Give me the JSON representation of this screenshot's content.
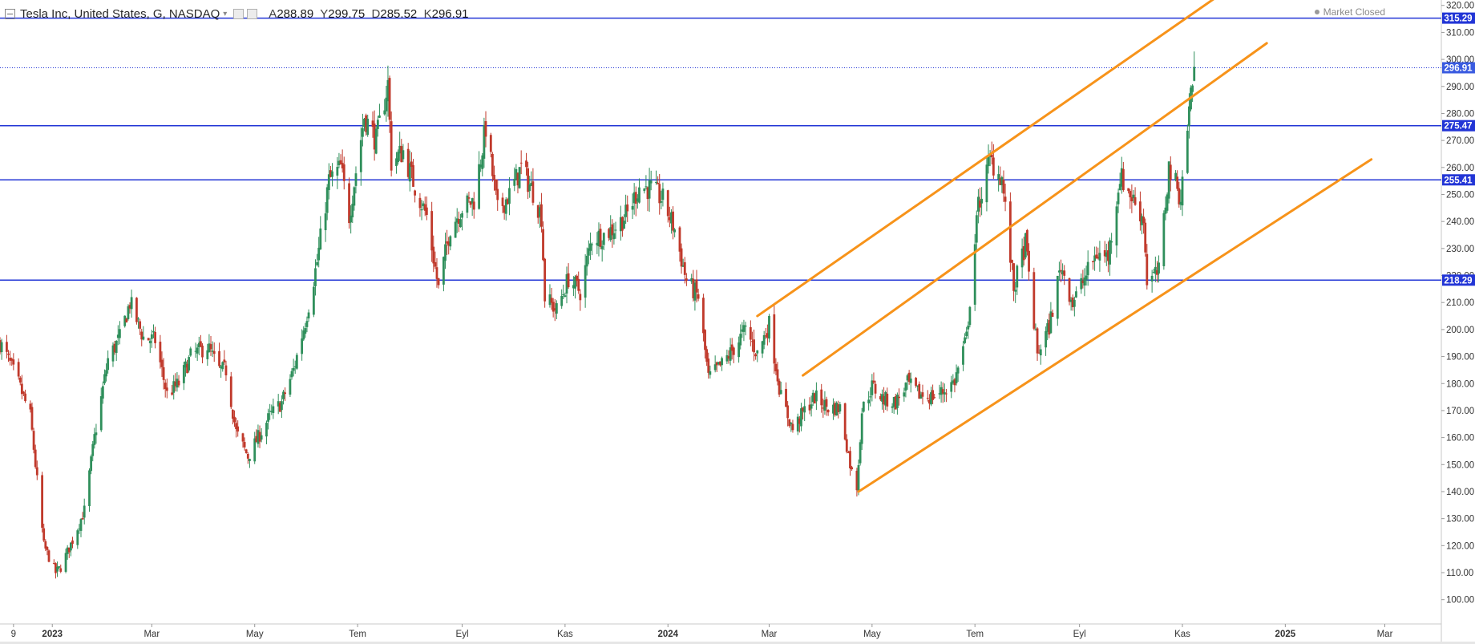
{
  "header": {
    "symbol": "Tesla Inc, United States, G, NASDAQ",
    "open_label": "A",
    "open": "288.89",
    "high_label": "Y",
    "high": "299.75",
    "low_label": "D",
    "low": "285.52",
    "close_label": "K",
    "close": "296.91",
    "market_status": "Market Closed"
  },
  "colors": {
    "up": "#2f8f5b",
    "down": "#c0392b",
    "level": "#2235d6",
    "channel": "#f7931a",
    "tag": "#2235d6",
    "last_tag": "#3a5be0"
  },
  "chart_data": {
    "type": "candlestick",
    "title": "Tesla Inc, United States, G, NASDAQ",
    "ylim": [
      91,
      322
    ],
    "y_ticks": [
      100,
      110,
      120,
      130,
      140,
      150,
      160,
      170,
      180,
      190,
      200,
      210,
      220,
      230,
      240,
      250,
      260,
      270,
      280,
      290,
      300,
      310,
      320
    ],
    "x_ticks": [
      {
        "label": "9",
        "date": "2022-12-09",
        "bold": false
      },
      {
        "label": "2023",
        "date": "2023-01-01",
        "bold": true
      },
      {
        "label": "Mar",
        "date": "2023-03-01",
        "bold": false
      },
      {
        "label": "May",
        "date": "2023-05-01",
        "bold": false
      },
      {
        "label": "Tem",
        "date": "2023-07-01",
        "bold": false
      },
      {
        "label": "Eyl",
        "date": "2023-09-01",
        "bold": false
      },
      {
        "label": "Kas",
        "date": "2023-11-01",
        "bold": false
      },
      {
        "label": "2024",
        "date": "2024-01-01",
        "bold": true
      },
      {
        "label": "Mar",
        "date": "2024-03-01",
        "bold": false
      },
      {
        "label": "May",
        "date": "2024-05-01",
        "bold": false
      },
      {
        "label": "Tem",
        "date": "2024-07-01",
        "bold": false
      },
      {
        "label": "Eyl",
        "date": "2024-09-01",
        "bold": false
      },
      {
        "label": "Kas",
        "date": "2024-11-01",
        "bold": false
      },
      {
        "label": "2025",
        "date": "2025-01-01",
        "bold": true
      },
      {
        "label": "Mar",
        "date": "2025-03-01",
        "bold": false
      }
    ],
    "horizontal_levels": [
      315.29,
      275.47,
      255.41,
      218.29
    ],
    "last_price": 296.91,
    "channel_lines": [
      {
        "from": [
          "2024-02-23",
          205
        ],
        "to": [
          "2024-11-21",
          323
        ]
      },
      {
        "from": [
          "2024-03-21",
          183
        ],
        "to": [
          "2024-12-21",
          306
        ]
      },
      {
        "from": [
          "2024-04-23",
          140
        ],
        "to": [
          "2025-02-21",
          263
        ]
      }
    ],
    "price_path": [
      [
        "2022-12-01",
        195
      ],
      [
        "2022-12-05",
        190
      ],
      [
        "2022-12-12",
        180
      ],
      [
        "2022-12-19",
        168
      ],
      [
        "2022-12-27",
        120
      ],
      [
        "2023-01-03",
        110
      ],
      [
        "2023-01-06",
        112
      ],
      [
        "2023-01-13",
        122
      ],
      [
        "2023-01-20",
        133
      ],
      [
        "2023-01-26",
        160
      ],
      [
        "2023-02-03",
        189
      ],
      [
        "2023-02-10",
        197
      ],
      [
        "2023-02-16",
        210
      ],
      [
        "2023-02-24",
        197
      ],
      [
        "2023-03-03",
        196
      ],
      [
        "2023-03-10",
        176
      ],
      [
        "2023-03-17",
        180
      ],
      [
        "2023-03-24",
        190
      ],
      [
        "2023-04-03",
        194
      ],
      [
        "2023-04-10",
        185
      ],
      [
        "2023-04-14",
        185
      ],
      [
        "2023-04-20",
        162
      ],
      [
        "2023-04-27",
        153
      ],
      [
        "2023-05-03",
        160
      ],
      [
        "2023-05-10",
        168
      ],
      [
        "2023-05-17",
        173
      ],
      [
        "2023-05-24",
        185
      ],
      [
        "2023-05-31",
        203
      ],
      [
        "2023-06-07",
        225
      ],
      [
        "2023-06-14",
        255
      ],
      [
        "2023-06-21",
        260
      ],
      [
        "2023-06-26",
        242
      ],
      [
        "2023-07-05",
        279
      ],
      [
        "2023-07-12",
        270
      ],
      [
        "2023-07-19",
        291
      ],
      [
        "2023-07-21",
        262
      ],
      [
        "2023-07-28",
        266
      ],
      [
        "2023-08-04",
        253
      ],
      [
        "2023-08-11",
        242
      ],
      [
        "2023-08-18",
        215
      ],
      [
        "2023-08-25",
        238
      ],
      [
        "2023-09-01",
        245
      ],
      [
        "2023-09-08",
        248
      ],
      [
        "2023-09-15",
        275
      ],
      [
        "2023-09-22",
        244
      ],
      [
        "2023-09-29",
        250
      ],
      [
        "2023-10-06",
        260
      ],
      [
        "2023-10-13",
        251
      ],
      [
        "2023-10-18",
        242
      ],
      [
        "2023-10-20",
        212
      ],
      [
        "2023-10-27",
        207
      ],
      [
        "2023-11-03",
        219
      ],
      [
        "2023-11-10",
        214
      ],
      [
        "2023-11-17",
        234
      ],
      [
        "2023-11-24",
        235
      ],
      [
        "2023-12-01",
        238
      ],
      [
        "2023-12-08",
        243
      ],
      [
        "2023-12-15",
        253
      ],
      [
        "2023-12-22",
        252
      ],
      [
        "2023-12-29",
        248
      ],
      [
        "2024-01-05",
        237
      ],
      [
        "2024-01-12",
        218
      ],
      [
        "2024-01-19",
        212
      ],
      [
        "2024-01-25",
        182
      ],
      [
        "2024-02-02",
        187
      ],
      [
        "2024-02-09",
        193
      ],
      [
        "2024-02-16",
        200
      ],
      [
        "2024-02-23",
        191
      ],
      [
        "2024-03-01",
        202
      ],
      [
        "2024-03-08",
        175
      ],
      [
        "2024-03-15",
        163
      ],
      [
        "2024-03-22",
        170
      ],
      [
        "2024-03-28",
        175
      ],
      [
        "2024-04-05",
        171
      ],
      [
        "2024-04-12",
        171
      ],
      [
        "2024-04-19",
        147
      ],
      [
        "2024-04-22",
        142
      ],
      [
        "2024-04-25",
        170
      ],
      [
        "2024-05-01",
        179
      ],
      [
        "2024-05-08",
        174
      ],
      [
        "2024-05-15",
        173
      ],
      [
        "2024-05-22",
        180
      ],
      [
        "2024-05-29",
        176
      ],
      [
        "2024-06-05",
        175
      ],
      [
        "2024-06-12",
        177
      ],
      [
        "2024-06-19",
        181
      ],
      [
        "2024-06-26",
        197
      ],
      [
        "2024-07-03",
        246
      ],
      [
        "2024-07-10",
        263
      ],
      [
        "2024-07-17",
        256
      ],
      [
        "2024-07-24",
        215
      ],
      [
        "2024-07-31",
        232
      ],
      [
        "2024-08-07",
        191
      ],
      [
        "2024-08-14",
        201
      ],
      [
        "2024-08-21",
        224
      ],
      [
        "2024-08-28",
        210
      ],
      [
        "2024-09-04",
        219
      ],
      [
        "2024-09-11",
        228
      ],
      [
        "2024-09-18",
        227
      ],
      [
        "2024-09-25",
        257
      ],
      [
        "2024-10-02",
        249
      ],
      [
        "2024-10-09",
        241
      ],
      [
        "2024-10-11",
        218
      ],
      [
        "2024-10-18",
        221
      ],
      [
        "2024-10-24",
        260
      ],
      [
        "2024-10-31",
        249
      ],
      [
        "2024-11-06",
        288
      ],
      [
        "2024-11-08",
        296.91
      ]
    ]
  }
}
